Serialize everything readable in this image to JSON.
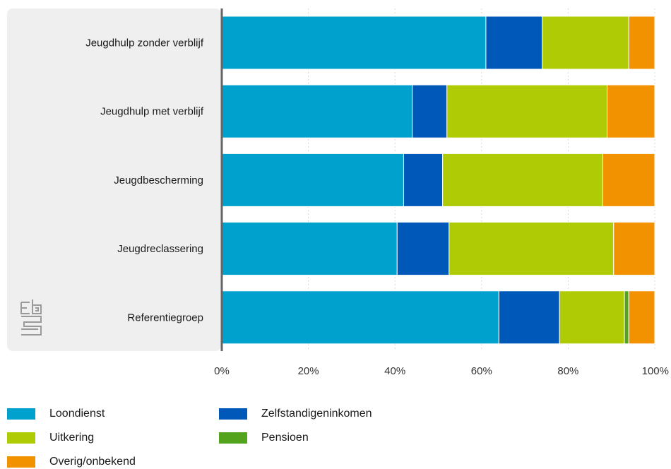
{
  "chart_data": {
    "type": "bar",
    "orientation": "horizontal",
    "stacked": true,
    "percent": true,
    "categories": [
      "Jeugdhulp zonder verblijf",
      "Jeugdhulp met verblijf",
      "Jeugdbescherming",
      "Jeugdreclassering",
      "Referentiegroep"
    ],
    "series": [
      {
        "name": "Loondienst",
        "color": "#00a1cd",
        "values": [
          61,
          44,
          42,
          40.5,
          64
        ]
      },
      {
        "name": "Zelfstandigeninkomen",
        "color": "#0058b8",
        "values": [
          13,
          8,
          9,
          12,
          14
        ]
      },
      {
        "name": "Uitkering",
        "color": "#afcb05",
        "values": [
          20,
          37,
          37,
          38,
          15
        ]
      },
      {
        "name": "Pensioen",
        "color": "#53a31d",
        "values": [
          0,
          0,
          0,
          0,
          1
        ]
      },
      {
        "name": "Overig/onbekend",
        "color": "#f39200",
        "values": [
          6,
          11,
          12,
          9.5,
          6
        ]
      }
    ],
    "xlim": [
      0,
      100
    ],
    "x_ticks": [
      "0%",
      "20%",
      "40%",
      "60%",
      "80%",
      "100%"
    ],
    "grid": true,
    "legend_position": "bottom-left",
    "legend_order": [
      "Loondienst",
      "Zelfstandigeninkomen",
      "Uitkering",
      "Pensioen",
      "Overig/onbekend"
    ],
    "logo_text": "cbs"
  }
}
